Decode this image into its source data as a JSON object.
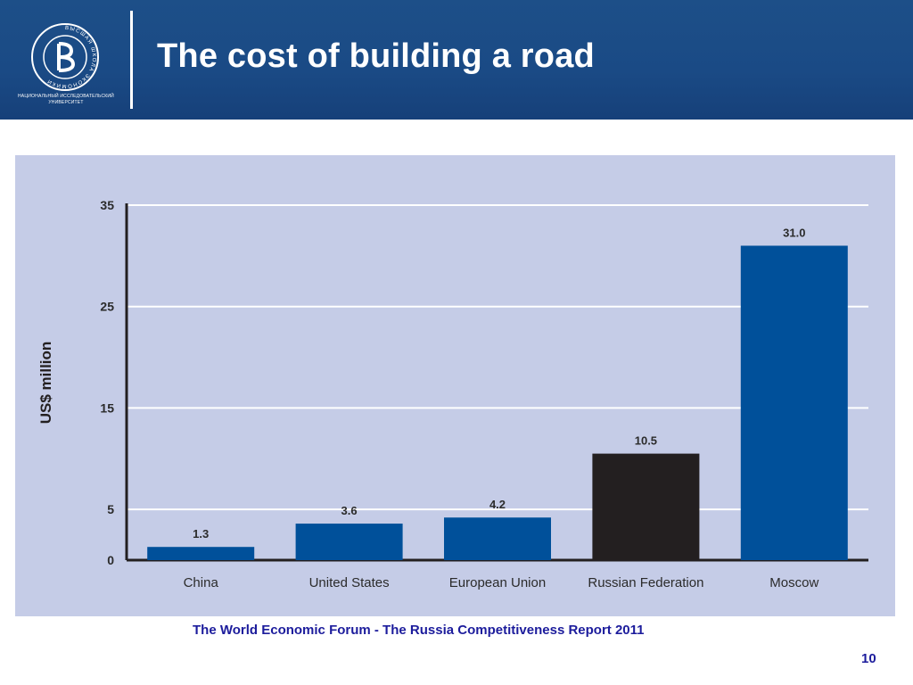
{
  "slide": {
    "title": "The cost of building a road",
    "logo_caption": "НАЦИОНАЛЬНЫЙ ИССЛЕДОВАТЕЛЬСКИЙ УНИВЕРСИТЕТ",
    "logo_ring_text": "ВЫСШАЯ ШКОЛА ЭКОНОМИКИ",
    "source": "The World Economic Forum - The Russia Competitiveness Report 2011",
    "page_number": "10"
  },
  "colors": {
    "header": "#1a4a85",
    "panel": "#c5cce7",
    "bar": "#00509a",
    "bar_highlight": "#231f20",
    "text_blue": "#1c1c9c"
  },
  "chart_data": {
    "type": "bar",
    "title": "",
    "xlabel": "",
    "ylabel": "US$ million",
    "categories": [
      "China",
      "United States",
      "European Union",
      "Russian Federation",
      "Moscow"
    ],
    "values": [
      1.3,
      3.6,
      4.2,
      10.5,
      31.0
    ],
    "value_labels": [
      "1.3",
      "3.6",
      "4.2",
      "10.5",
      "31.0"
    ],
    "highlight_category": "Russian Federation",
    "ylim": [
      0,
      35
    ],
    "yticks": [
      0,
      5,
      15,
      25,
      35
    ],
    "grid": true,
    "legend": "none"
  }
}
